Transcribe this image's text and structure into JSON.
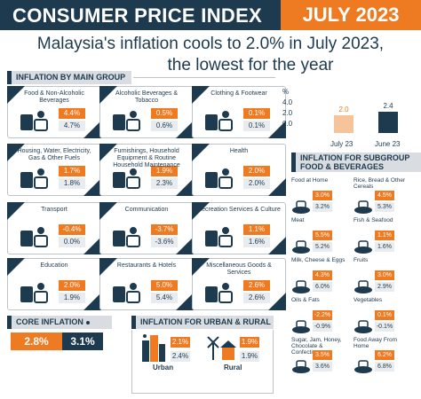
{
  "header": {
    "title": "CONSUMER PRICE INDEX",
    "date": "JULY 2023"
  },
  "headline": {
    "line1": "Malaysia's inflation cools to 2.0% in July 2023,",
    "line2": "the lowest for the year"
  },
  "sections": {
    "main_group": "INFLATION BY MAIN GROUP",
    "core": "CORE INFLATION",
    "urban_rural": "INFLATION FOR URBAN & RURAL",
    "subgroup_line1": "INFLATION FOR SUBGROUP",
    "subgroup_line2": "FOOD & BEVERAGES"
  },
  "legend": {
    "axis_unit": "%",
    "axis_ticks": [
      "4.0",
      "2.0",
      "0.0"
    ],
    "july_label": "July 23",
    "july_value": "2.0",
    "june_label": "June 23",
    "june_value": "2.4",
    "axis_max": 4.0,
    "july": 2.0,
    "june": 2.4
  },
  "main_groups": [
    {
      "label": "Food & Non-Alcoholic Beverages",
      "jul": "4.4%",
      "jun": "4.7%",
      "icon": "food-icon"
    },
    {
      "label": "Alcoholic Beverages & Tobacco",
      "jul": "0.5%",
      "jun": "0.6%",
      "icon": "bottle-icon"
    },
    {
      "label": "Clothing & Footwear",
      "jul": "0.1%",
      "jun": "0.1%",
      "icon": "clothing-icon"
    },
    {
      "label": "Housing, Water, Electricity, Gas & Other Fuels",
      "jul": "1.7%",
      "jun": "1.8%",
      "icon": "house-icon"
    },
    {
      "label": "Furnishings, Household Equipment & Routine Household Maintenance",
      "jul": "1.9%",
      "jun": "2.3%",
      "icon": "sofa-icon"
    },
    {
      "label": "Health",
      "jul": "2.0%",
      "jun": "2.0%",
      "icon": "heart-hand-icon"
    },
    {
      "label": "Transport",
      "jul": "-0.4%",
      "jun": "0.0%",
      "icon": "car-icon"
    },
    {
      "label": "Communication",
      "jul": "-3.7%",
      "jun": "-3.6%",
      "icon": "network-icon"
    },
    {
      "label": "Recreation Services & Culture",
      "jul": "1.1%",
      "jun": "1.6%",
      "icon": "recreation-icon"
    },
    {
      "label": "Education",
      "jul": "2.0%",
      "jun": "1.9%",
      "icon": "graduation-icon"
    },
    {
      "label": "Restaurants & Hotels",
      "jul": "5.0%",
      "jun": "5.4%",
      "icon": "hotel-icon"
    },
    {
      "label": "Miscellaneous Goods & Services",
      "jul": "2.6%",
      "jun": "2.6%",
      "icon": "misc-icon"
    }
  ],
  "core": {
    "jul": "2.8%",
    "jun": "3.1%"
  },
  "urban": {
    "label": "Urban",
    "jul": "2.1%",
    "jun": "2.4%"
  },
  "rural": {
    "label": "Rural",
    "jul": "1.9%",
    "jun": "1.9%"
  },
  "subgroups": [
    {
      "label": "Food at Home",
      "jul": "3.0%",
      "jun": "3.2%",
      "icon": "dish-icon"
    },
    {
      "label": "Rice, Bread & Other Cereals",
      "jul": "4.5%",
      "jun": "5.3%",
      "icon": "rice-icon"
    },
    {
      "label": "Meat",
      "jul": "5.5%",
      "jun": "5.2%",
      "icon": "meat-icon"
    },
    {
      "label": "Fish & Seafood",
      "jul": "1.1%",
      "jun": "1.6%",
      "icon": "fish-icon"
    },
    {
      "label": "Milk, Cheese & Eggs",
      "jul": "4.3%",
      "jun": "6.0%",
      "icon": "milk-icon"
    },
    {
      "label": "Fruits",
      "jul": "3.0%",
      "jun": "2.9%",
      "icon": "fruit-icon"
    },
    {
      "label": "Oils & Fats",
      "jul": "-2.2%",
      "jun": "-0.9%",
      "icon": "oil-icon"
    },
    {
      "label": "Vegetables",
      "jul": "0.1%",
      "jun": "-0.1%",
      "icon": "vegetable-icon"
    },
    {
      "label": "Sugar, Jam, Honey, Chocolate & Confectionery",
      "jul": "3.5%",
      "jun": "3.6%",
      "icon": "sweets-icon"
    },
    {
      "label": "Food Away From Home",
      "jul": "6.2%",
      "jun": "6.8%",
      "icon": "takeaway-icon"
    }
  ],
  "colors": {
    "navy": "#1e3a4f",
    "orange": "#ee7b22",
    "light": "#e9ecef",
    "july_bar": "#f5c49a"
  }
}
